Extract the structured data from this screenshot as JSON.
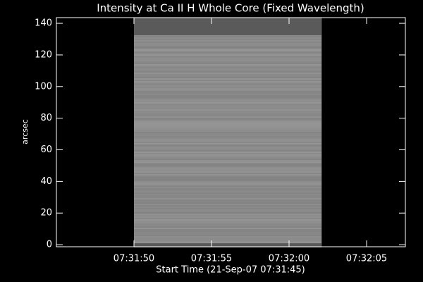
{
  "chart_data": {
    "type": "image",
    "title": "Intensity at Ca II H Whole Core (Fixed Wavelength)",
    "xlabel": "Start Time (21-Sep-07 07:31:45)",
    "ylabel": "arcsec",
    "xlim": [
      0,
      22.5
    ],
    "xticks": [
      {
        "value": 5,
        "label": "07:31:50"
      },
      {
        "value": 10,
        "label": "07:31:55"
      },
      {
        "value": 15,
        "label": "07:32:00"
      },
      {
        "value": 20,
        "label": "07:32:05"
      }
    ],
    "ylim": [
      -1.3,
      143.6
    ],
    "yticks": [
      0,
      20,
      40,
      60,
      80,
      100,
      120,
      140
    ],
    "image": {
      "x": [
        5,
        17.1
      ],
      "y": [
        -1.3,
        143.6
      ]
    },
    "color": "#8c8c8c"
  }
}
